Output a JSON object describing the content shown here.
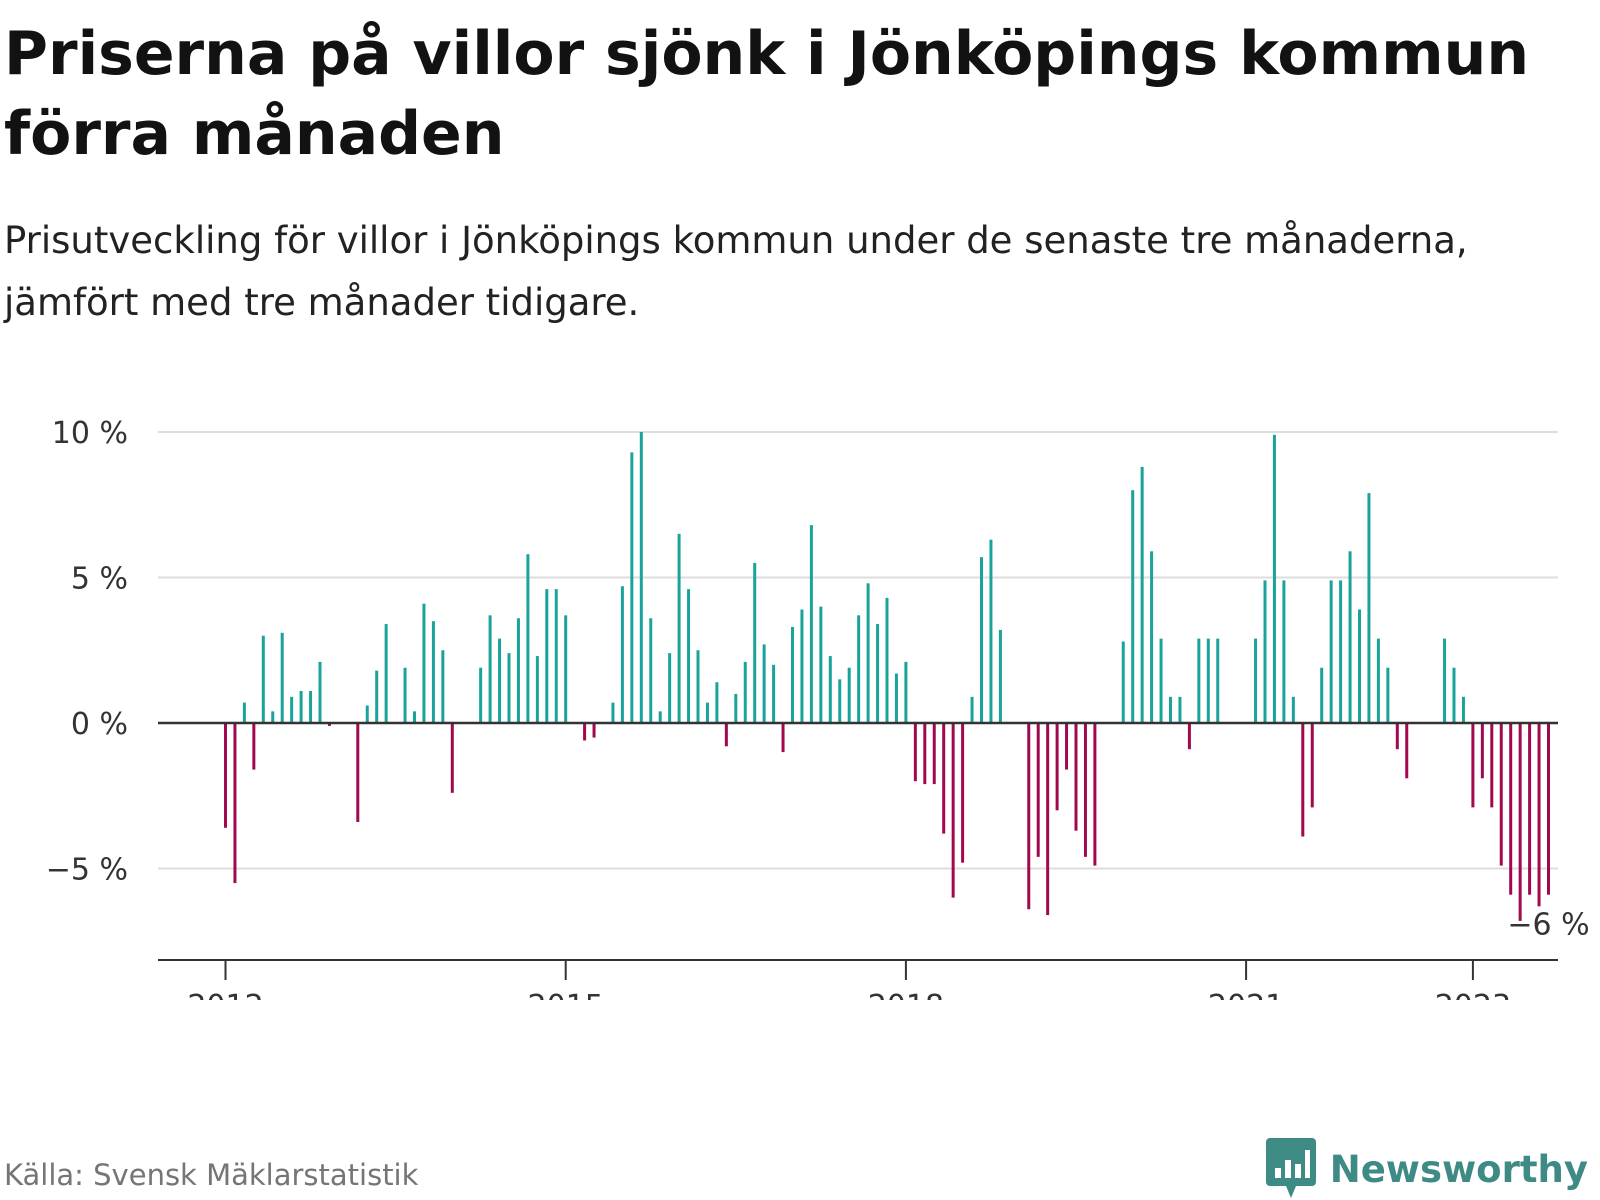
{
  "title": "Priserna på villor sjönk i Jönköpings kommun förra månaden",
  "subtitle": "Prisutveckling för villor i Jönköpings kommun under de senaste tre månaderna, jämfört med tre månader tidigare.",
  "source": "Källa: Svensk Mäklarstatistik",
  "brand": {
    "name": "Newsworthy",
    "icon": "newsworthy-logo-icon"
  },
  "colors": {
    "positive": "#1aa39b",
    "negative": "#a1084d",
    "grid": "#dddddd",
    "axis": "#333333",
    "brand": "#3e8a85"
  },
  "chart_data": {
    "type": "bar",
    "start": "2012-01",
    "x_ticks": [
      "2012",
      "2015",
      "2018",
      "2021",
      "2023"
    ],
    "y_ticks": [
      -5,
      0,
      5,
      10
    ],
    "y_tick_labels": [
      "−5 %",
      "0 %",
      "5 %",
      "10 %"
    ],
    "ylim": [
      -8,
      10
    ],
    "grid": true,
    "annotation": {
      "label": "−6 %",
      "target": "last"
    },
    "values": [
      -3.6,
      -5.5,
      0.7,
      -1.6,
      3.0,
      0.4,
      3.1,
      0.9,
      1.1,
      1.1,
      2.1,
      -0.1,
      0,
      0,
      -3.4,
      0.6,
      1.8,
      3.4,
      0,
      1.9,
      0.4,
      4.1,
      3.5,
      2.5,
      -2.4,
      0,
      0,
      1.9,
      3.7,
      2.9,
      2.4,
      3.6,
      5.8,
      2.3,
      4.6,
      4.6,
      3.7,
      0,
      -0.6,
      -0.5,
      0,
      0.7,
      4.7,
      9.3,
      10.0,
      3.6,
      0.4,
      2.4,
      6.5,
      4.6,
      2.5,
      0.7,
      1.4,
      -0.8,
      1.0,
      2.1,
      5.5,
      2.7,
      2.0,
      -1.0,
      3.3,
      3.9,
      6.8,
      4.0,
      2.3,
      1.5,
      1.9,
      3.7,
      4.8,
      3.4,
      4.3,
      1.7,
      2.1,
      -2.0,
      -2.1,
      -2.1,
      -3.8,
      -6.0,
      -4.8,
      0.9,
      5.7,
      6.3,
      3.2,
      0,
      0,
      -6.4,
      -4.6,
      -6.6,
      -3.0,
      -1.6,
      -3.7,
      -4.6,
      -4.9,
      0,
      0,
      2.8,
      8.0,
      8.8,
      5.9,
      2.9,
      0.9,
      0.9,
      -0.9,
      2.9,
      2.9,
      2.9,
      0,
      0,
      0,
      2.9,
      4.9,
      9.9,
      4.9,
      0.9,
      -3.9,
      -2.9,
      1.9,
      4.9,
      4.9,
      5.9,
      3.9,
      7.9,
      2.9,
      1.9,
      -0.9,
      -1.9,
      0,
      0,
      0,
      2.9,
      1.9,
      0.9,
      -2.9,
      -1.9,
      -2.9,
      -4.9,
      -5.9,
      -6.8,
      -5.9,
      -6.3,
      -5.9
    ]
  }
}
